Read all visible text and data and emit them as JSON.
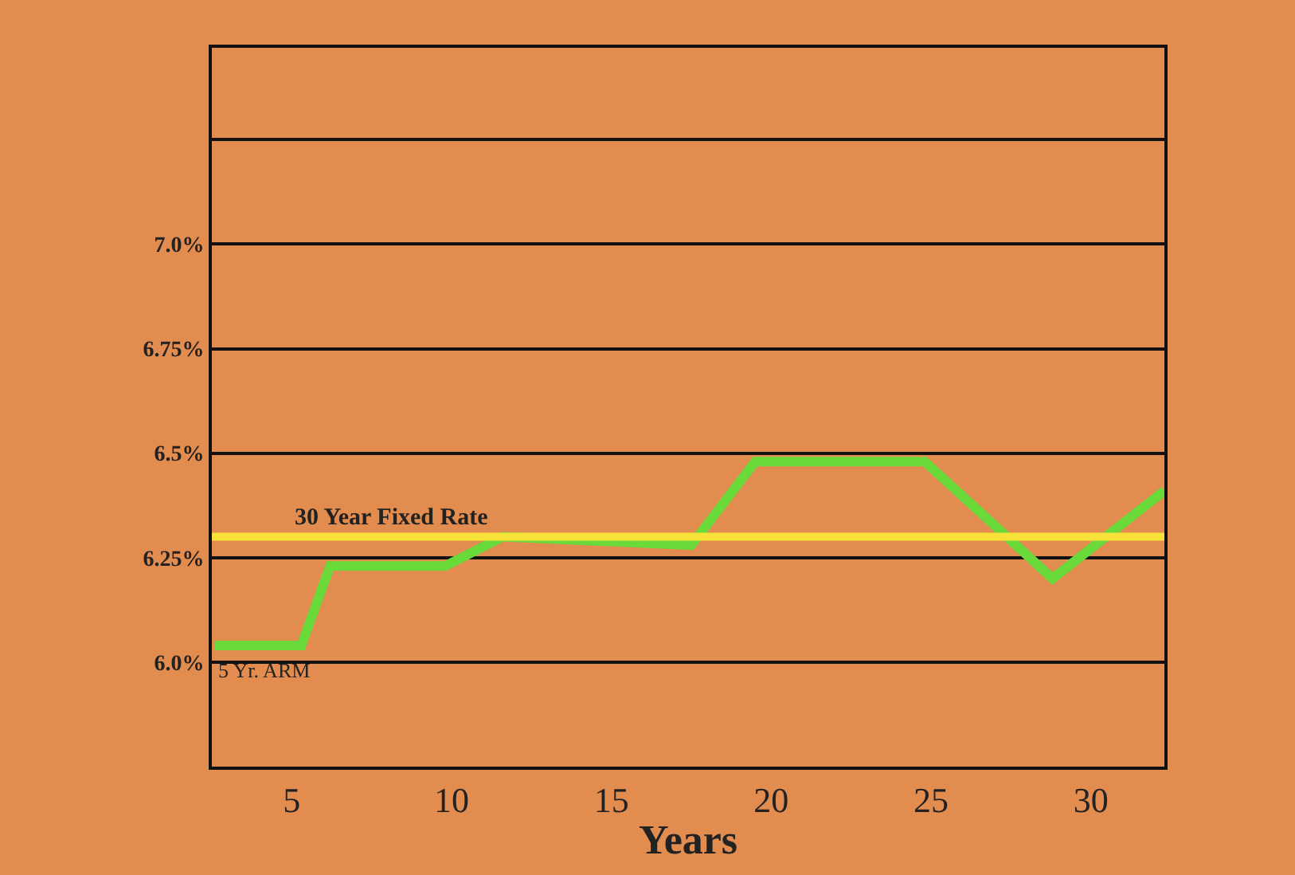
{
  "chart_data": {
    "type": "line",
    "xlabel": "Years",
    "x": [
      2.6,
      5.3,
      6.2,
      9.8,
      11.6,
      17.5,
      19.5,
      24.8,
      28.8,
      32.3
    ],
    "series": [
      {
        "name": "5 Yr. ARM",
        "color": "#6ad93a",
        "values": [
          6.04,
          6.04,
          6.23,
          6.23,
          6.3,
          6.28,
          6.48,
          6.48,
          6.2,
          6.41
        ]
      }
    ],
    "xlim": [
      2.5,
      32.3
    ],
    "xticks": [
      5,
      10,
      15,
      20,
      25,
      30
    ],
    "ylim": [
      5.75,
      7.47
    ],
    "yticks": [
      {
        "value": 6.0,
        "label": "6.0%"
      },
      {
        "value": 6.25,
        "label": "6.25%"
      },
      {
        "value": 6.5,
        "label": "6.5%"
      },
      {
        "value": 6.75,
        "label": "6.75%"
      },
      {
        "value": 7.0,
        "label": "7.0%"
      },
      {
        "value": 7.25,
        "label": null
      }
    ],
    "ref_lines": [
      {
        "axis": "y",
        "value": 6.3,
        "label": "30 Year Fixed Rate",
        "color": "#f7e23a"
      }
    ],
    "grid": "y",
    "marker": "none",
    "line_style": "solid",
    "legend": false
  }
}
